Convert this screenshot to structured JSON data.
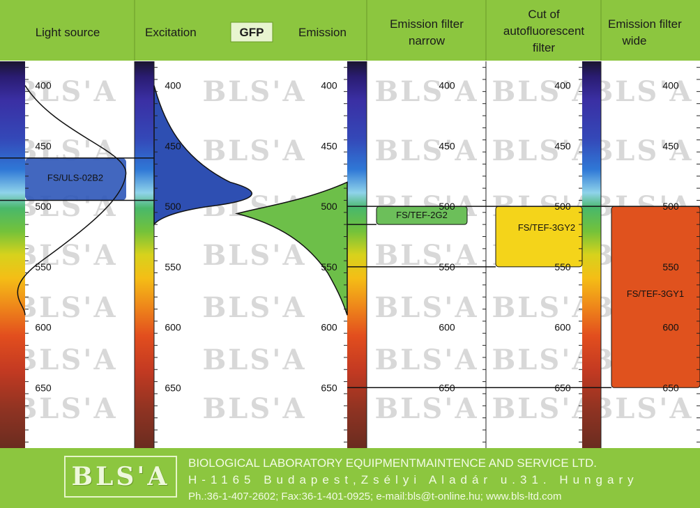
{
  "colors": {
    "header_green": "#8cc63f",
    "text": "#111111",
    "gfp_box": "#e8f5d0",
    "watermark": "#d8d8d8"
  },
  "headers": {
    "light_source": "Light source",
    "excitation": "Excitation",
    "gfp": "GFP",
    "emission": "Emission",
    "emission_narrow": [
      "Emission filter",
      "narrow"
    ],
    "cut_autofluorescent": [
      "Cut of",
      "autofluorescent",
      "filter"
    ],
    "emission_wide": [
      "Emission filter",
      "wide"
    ]
  },
  "watermark": "BLS'A",
  "chart_data": {
    "type": "spectrum",
    "wavelength_range": [
      380,
      700
    ],
    "ticks": [
      400,
      450,
      500,
      550,
      600,
      650
    ],
    "light_source": {
      "label": "FS/ULS-02B2",
      "band": [
        460,
        495
      ],
      "curve_peak": 470
    },
    "excitation_curve": {
      "peak": 488,
      "range": [
        400,
        515
      ]
    },
    "emission_curve": {
      "peak": 507,
      "range": [
        480,
        590
      ]
    },
    "filters": [
      {
        "column": "narrow",
        "label": "FS/TEF-2G2",
        "range": [
          500,
          515
        ]
      },
      {
        "column": "autofluorescent",
        "label": "FS/TEF-3GY2",
        "range": [
          500,
          550
        ]
      },
      {
        "column": "wide",
        "label": "FS/TEF-3GY1",
        "range": [
          500,
          650
        ]
      }
    ]
  },
  "footer": {
    "logo": "BLS'A",
    "line1": "BIOLOGICAL LABORATORY EQUIPMENTMAINTENCE AND SERVICE LTD.",
    "line2": "H-1165 Budapest,Zsélyi Aladár u.31. Hungary",
    "line3": "Ph.:36-1-407-2602; Fax:36-1-401-0925; e-mail:bls@t-online.hu; www.bls-ltd.com"
  }
}
